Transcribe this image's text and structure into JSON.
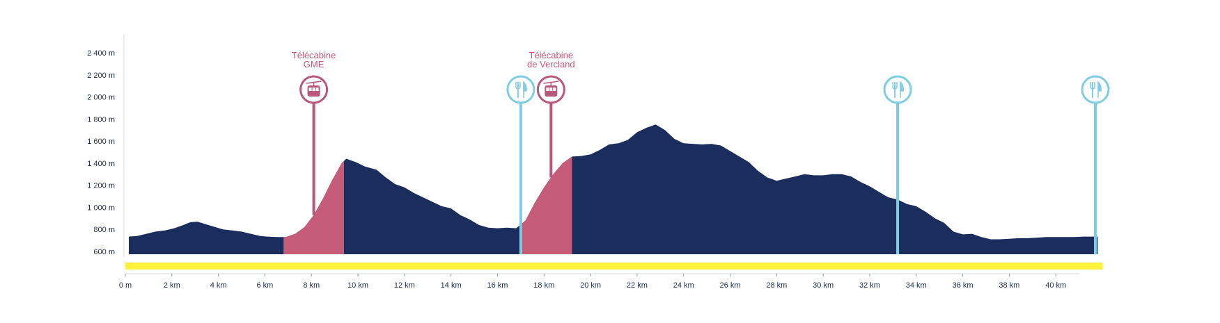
{
  "chart_data": {
    "type": "area",
    "xlabel": "",
    "ylabel": "",
    "xlim": [
      0,
      42
    ],
    "ylim": [
      600,
      2400
    ],
    "y_ticks": [
      600,
      800,
      1000,
      1200,
      1400,
      1600,
      1800,
      2000,
      2200,
      2400
    ],
    "y_tick_labels": [
      "600 m",
      "800 m",
      "1 000 m",
      "1 200 m",
      "1 400 m",
      "1 600 m",
      "1 800 m",
      "2 000 m",
      "2 200 m",
      "2 400 m"
    ],
    "x_ticks": [
      0,
      2,
      4,
      6,
      8,
      10,
      12,
      14,
      16,
      18,
      20,
      22,
      24,
      26,
      28,
      30,
      32,
      34,
      36,
      38,
      40
    ],
    "x_tick_labels": [
      "0 m",
      "2 km",
      "4 km",
      "6 km",
      "8 km",
      "10 km",
      "12 km",
      "14 km",
      "16 km",
      "18 km",
      "20 km",
      "22 km",
      "24 km",
      "26 km",
      "28 km",
      "30 km",
      "32 km",
      "34 km",
      "36 km",
      "38 km",
      "40 km"
    ],
    "series": [
      {
        "kind": "elevation",
        "x": [
          0.15,
          0.5,
          0.9,
          1.3,
          1.7,
          2.1,
          2.5,
          2.8,
          3.1,
          3.4,
          3.8,
          4.2,
          4.6,
          5.0,
          5.4,
          5.8,
          6.1,
          6.5,
          6.9,
          7.3,
          7.7,
          8.1,
          8.5,
          8.9,
          9.3,
          9.5,
          9.9,
          10.3,
          10.8,
          11.2,
          11.6,
          12.0,
          12.4,
          12.8,
          13.2,
          13.6,
          14.0,
          14.4,
          14.8,
          15.2,
          15.6,
          16.0,
          16.4,
          16.8,
          17.2,
          17.6,
          18.0,
          18.4,
          18.8,
          19.2,
          19.6,
          20.0,
          20.4,
          20.8,
          21.2,
          21.6,
          22.0,
          22.4,
          22.8,
          23.2,
          23.6,
          24.0,
          24.4,
          24.8,
          25.2,
          25.6,
          26.0,
          26.4,
          26.8,
          27.2,
          27.6,
          28.0,
          28.4,
          28.8,
          29.2,
          29.6,
          30.0,
          30.4,
          30.8,
          31.2,
          31.6,
          32.0,
          32.4,
          32.8,
          33.2,
          33.6,
          34.0,
          34.4,
          34.8,
          35.2,
          35.6,
          36.0,
          36.4,
          36.8,
          37.2,
          37.6,
          38.0,
          38.4,
          38.8,
          39.2,
          39.6,
          40.0,
          40.4,
          40.8,
          41.2,
          41.6,
          41.8
        ],
        "y": [
          735,
          740,
          760,
          780,
          790,
          810,
          840,
          865,
          870,
          850,
          825,
          800,
          790,
          780,
          760,
          740,
          735,
          730,
          730,
          760,
          820,
          930,
          1080,
          1250,
          1400,
          1440,
          1410,
          1370,
          1340,
          1270,
          1210,
          1180,
          1130,
          1090,
          1050,
          1010,
          990,
          930,
          890,
          840,
          815,
          810,
          815,
          810,
          880,
          1040,
          1180,
          1300,
          1400,
          1460,
          1465,
          1480,
          1520,
          1570,
          1580,
          1610,
          1680,
          1720,
          1750,
          1700,
          1620,
          1580,
          1575,
          1570,
          1575,
          1560,
          1510,
          1460,
          1410,
          1330,
          1270,
          1240,
          1260,
          1280,
          1300,
          1290,
          1290,
          1300,
          1300,
          1280,
          1230,
          1190,
          1140,
          1090,
          1070,
          1030,
          1010,
          960,
          900,
          860,
          780,
          755,
          760,
          730,
          710,
          710,
          715,
          720,
          720,
          725,
          730,
          730,
          730,
          730,
          735,
          735,
          735
        ]
      }
    ],
    "lift_segments": [
      {
        "x_start": 6.8,
        "x_end": 9.4
      },
      {
        "x_start": 17.0,
        "x_end": 19.2
      }
    ],
    "markers": [
      {
        "type": "gondola",
        "x": 8.1,
        "label_lines": [
          "Télécabine",
          "GME"
        ]
      },
      {
        "type": "gondola",
        "x": 18.3,
        "label_lines": [
          "Télécabine",
          "de Vercland"
        ]
      },
      {
        "type": "restaurant",
        "x": 17.0,
        "label_lines": []
      },
      {
        "type": "restaurant",
        "x": 33.2,
        "label_lines": []
      },
      {
        "type": "restaurant",
        "x": 41.7,
        "label_lines": []
      }
    ],
    "grid": false,
    "legend": "none",
    "colors": {
      "terrain": "#1a2d5c",
      "lift": "#c75b7a",
      "gondola_marker": "#b8577a",
      "restaurant_marker": "#7ecde3",
      "yellow_band": "#fff23a",
      "axis_text": "#1a2a4f"
    }
  }
}
